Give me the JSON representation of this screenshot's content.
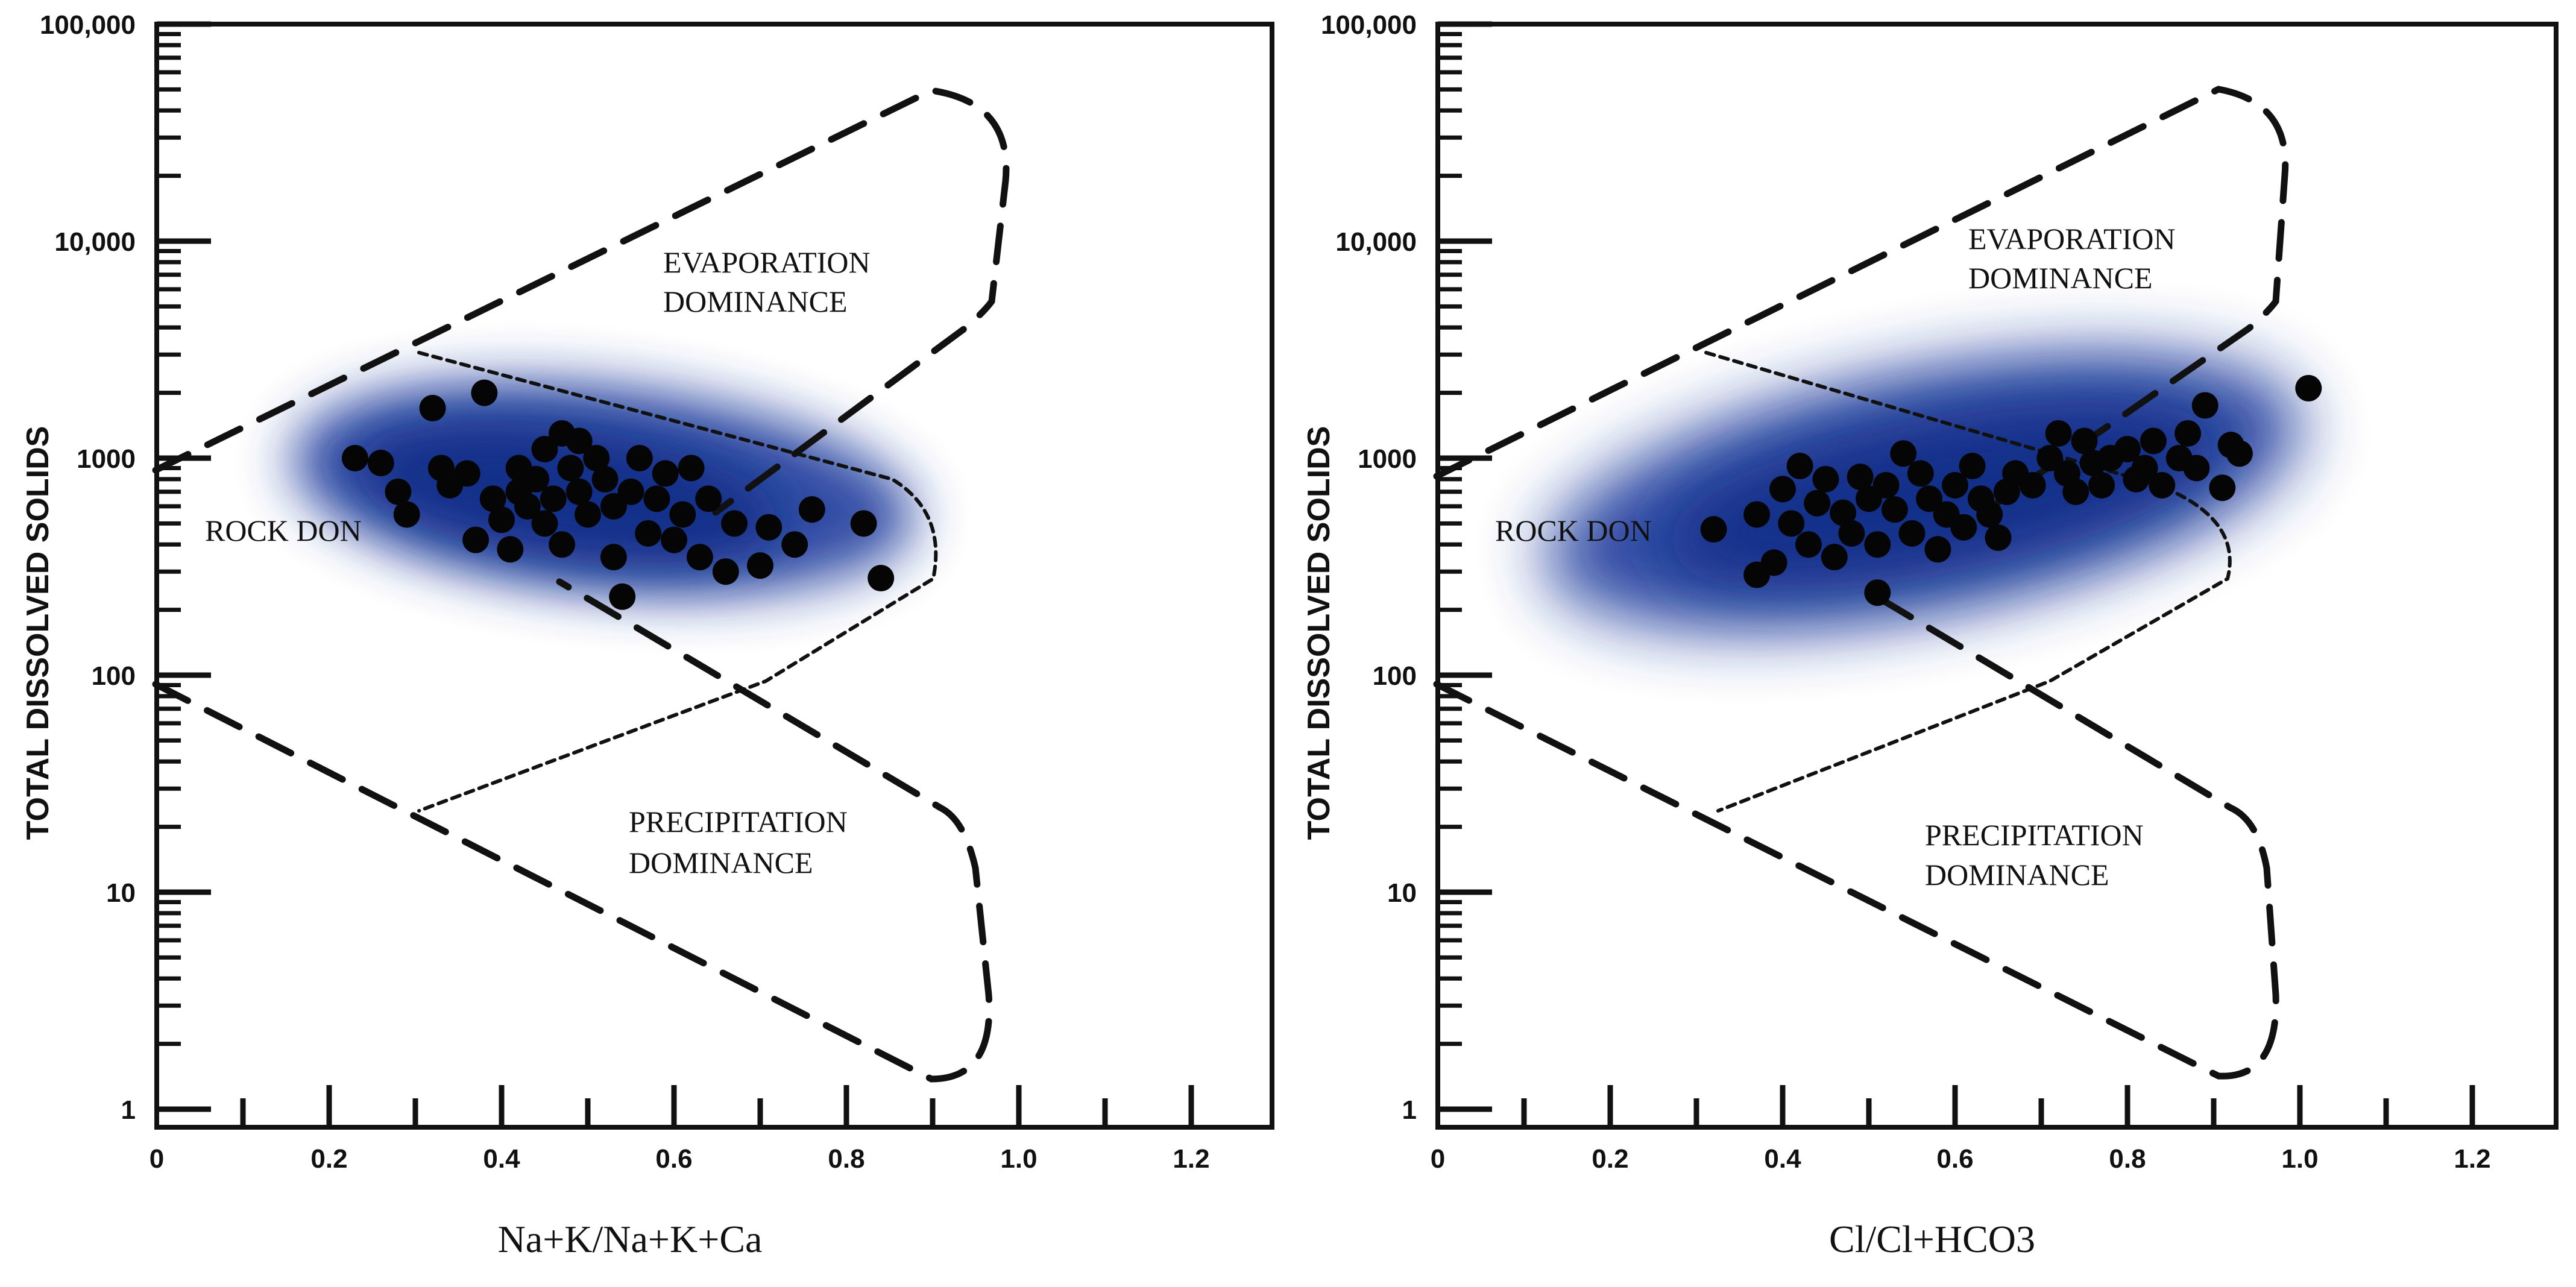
{
  "chart_data": [
    {
      "type": "scatter",
      "xlabel": "Na+K/Na+K+Ca",
      "ylabel": "TOTAL DISSOLVED SOLIDS",
      "xlim": [
        0,
        1.3
      ],
      "ylim": [
        1,
        100000
      ],
      "yscale": "log",
      "x_ticks": [
        "0",
        "0.2",
        "0.4",
        "0.6",
        "0.8",
        "1.0",
        "1.2"
      ],
      "y_ticks": [
        "1",
        "10",
        "100",
        "1000",
        "10,000",
        "100,000"
      ],
      "regions": {
        "evaporation_line1": "EVAPORATION",
        "evaporation_line2": "DOMINANCE",
        "rock": "ROCK DON",
        "precipitation_line1": "PRECIPITATION",
        "precipitation_line2": "DOMINANCE"
      },
      "points": [
        [
          0.23,
          1000
        ],
        [
          0.26,
          950
        ],
        [
          0.28,
          700
        ],
        [
          0.29,
          550
        ],
        [
          0.32,
          1700
        ],
        [
          0.33,
          900
        ],
        [
          0.34,
          750
        ],
        [
          0.36,
          850
        ],
        [
          0.37,
          420
        ],
        [
          0.38,
          2000
        ],
        [
          0.39,
          650
        ],
        [
          0.4,
          520
        ],
        [
          0.41,
          380
        ],
        [
          0.42,
          700
        ],
        [
          0.42,
          900
        ],
        [
          0.43,
          600
        ],
        [
          0.44,
          800
        ],
        [
          0.45,
          500
        ],
        [
          0.45,
          1100
        ],
        [
          0.46,
          650
        ],
        [
          0.47,
          1300
        ],
        [
          0.47,
          400
        ],
        [
          0.48,
          900
        ],
        [
          0.49,
          700
        ],
        [
          0.49,
          1200
        ],
        [
          0.5,
          550
        ],
        [
          0.51,
          1000
        ],
        [
          0.52,
          800
        ],
        [
          0.53,
          350
        ],
        [
          0.53,
          600
        ],
        [
          0.54,
          230
        ],
        [
          0.55,
          700
        ],
        [
          0.56,
          1000
        ],
        [
          0.57,
          450
        ],
        [
          0.58,
          650
        ],
        [
          0.59,
          850
        ],
        [
          0.6,
          420
        ],
        [
          0.61,
          550
        ],
        [
          0.62,
          900
        ],
        [
          0.63,
          350
        ],
        [
          0.64,
          650
        ],
        [
          0.66,
          300
        ],
        [
          0.67,
          500
        ],
        [
          0.7,
          320
        ],
        [
          0.71,
          480
        ],
        [
          0.74,
          400
        ],
        [
          0.76,
          580
        ],
        [
          0.82,
          500
        ],
        [
          0.84,
          280
        ]
      ]
    },
    {
      "type": "scatter",
      "xlabel": "Cl/Cl+HCO3",
      "ylabel": "TOTAL DISSOLVED SOLIDS",
      "xlim": [
        0,
        1.3
      ],
      "ylim": [
        1,
        100000
      ],
      "yscale": "log",
      "x_ticks": [
        "0",
        "0.2",
        "0.4",
        "0.6",
        "0.8",
        "1.0",
        "1.2"
      ],
      "y_ticks": [
        "1",
        "10",
        "100",
        "1000",
        "10,000",
        "100,000"
      ],
      "regions": {
        "evaporation_line1": "EVAPORATION",
        "evaporation_line2": "DOMINANCE",
        "rock": "ROCK DON",
        "precipitation_line1": "PRECIPITATION",
        "precipitation_line2": "DOMINANCE"
      },
      "points": [
        [
          0.32,
          470
        ],
        [
          0.37,
          550
        ],
        [
          0.37,
          290
        ],
        [
          0.39,
          330
        ],
        [
          0.4,
          720
        ],
        [
          0.41,
          500
        ],
        [
          0.42,
          920
        ],
        [
          0.43,
          400
        ],
        [
          0.44,
          620
        ],
        [
          0.45,
          800
        ],
        [
          0.46,
          350
        ],
        [
          0.47,
          560
        ],
        [
          0.48,
          450
        ],
        [
          0.49,
          820
        ],
        [
          0.5,
          650
        ],
        [
          0.51,
          240
        ],
        [
          0.51,
          400
        ],
        [
          0.52,
          750
        ],
        [
          0.53,
          580
        ],
        [
          0.54,
          1050
        ],
        [
          0.55,
          450
        ],
        [
          0.56,
          850
        ],
        [
          0.57,
          650
        ],
        [
          0.58,
          380
        ],
        [
          0.59,
          550
        ],
        [
          0.6,
          750
        ],
        [
          0.61,
          480
        ],
        [
          0.62,
          920
        ],
        [
          0.63,
          650
        ],
        [
          0.64,
          550
        ],
        [
          0.65,
          430
        ],
        [
          0.66,
          700
        ],
        [
          0.67,
          850
        ],
        [
          0.69,
          750
        ],
        [
          0.71,
          1000
        ],
        [
          0.72,
          1300
        ],
        [
          0.73,
          850
        ],
        [
          0.74,
          700
        ],
        [
          0.75,
          1200
        ],
        [
          0.76,
          950
        ],
        [
          0.77,
          750
        ],
        [
          0.78,
          1000
        ],
        [
          0.8,
          1100
        ],
        [
          0.81,
          800
        ],
        [
          0.82,
          900
        ],
        [
          0.83,
          1200
        ],
        [
          0.84,
          750
        ],
        [
          0.86,
          1000
        ],
        [
          0.87,
          1300
        ],
        [
          0.88,
          900
        ],
        [
          0.89,
          1750
        ],
        [
          0.91,
          730
        ],
        [
          0.92,
          1150
        ],
        [
          0.93,
          1050
        ],
        [
          1.01,
          2100
        ]
      ]
    }
  ]
}
